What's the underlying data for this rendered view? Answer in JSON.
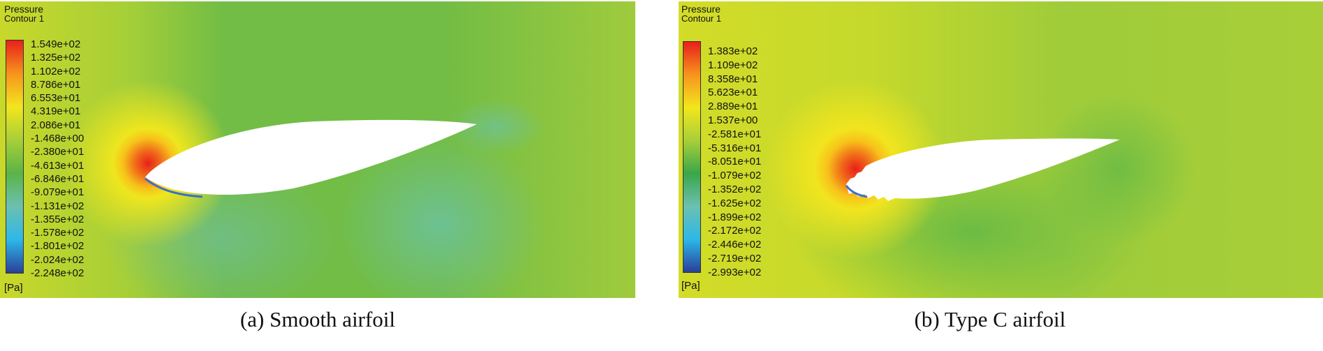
{
  "chart_data": [
    {
      "type": "heatmap",
      "caption": "(a) Smooth airfoil",
      "legend_title": "Pressure",
      "legend_subtitle": "Contour 1",
      "unit": "[Pa]",
      "colorbar_ticks": [
        "1.549e+02",
        "1.325e+02",
        "1.102e+02",
        "8.786e+01",
        "6.553e+01",
        "4.319e+01",
        "2.086e+01",
        "-1.468e+00",
        "-2.380e+01",
        "-4.613e+01",
        "-6.846e+01",
        "-9.079e+01",
        "-1.131e+02",
        "-1.355e+02",
        "-1.578e+02",
        "-1.801e+02",
        "-2.024e+02",
        "-2.248e+02"
      ],
      "range": [
        -224.8,
        154.9
      ],
      "colormap": [
        "#e8201a",
        "#f7941d",
        "#f2e61c",
        "#a8cf38",
        "#5bb446",
        "#6cc0b0",
        "#2db8e8",
        "#2a3f9a"
      ]
    },
    {
      "type": "heatmap",
      "caption": "(b) Type C airfoil",
      "legend_title": "Pressure",
      "legend_subtitle": "Contour 1",
      "unit": "[Pa]",
      "colorbar_ticks": [
        "1.383e+02",
        "1.109e+02",
        "8.358e+01",
        "5.623e+01",
        "2.889e+01",
        "1.537e+00",
        "-2.581e+01",
        "-5.316e+01",
        "-8.051e+01",
        "-1.079e+02",
        "-1.352e+02",
        "-1.625e+02",
        "-1.899e+02",
        "-2.172e+02",
        "-2.446e+02",
        "-2.719e+02",
        "-2.993e+02"
      ],
      "range": [
        -299.3,
        138.3
      ],
      "colormap": [
        "#e8201a",
        "#f7941d",
        "#f2e61c",
        "#a8cf38",
        "#3aa64a",
        "#6cc0b0",
        "#2db8e8",
        "#2a3f9a"
      ]
    }
  ]
}
